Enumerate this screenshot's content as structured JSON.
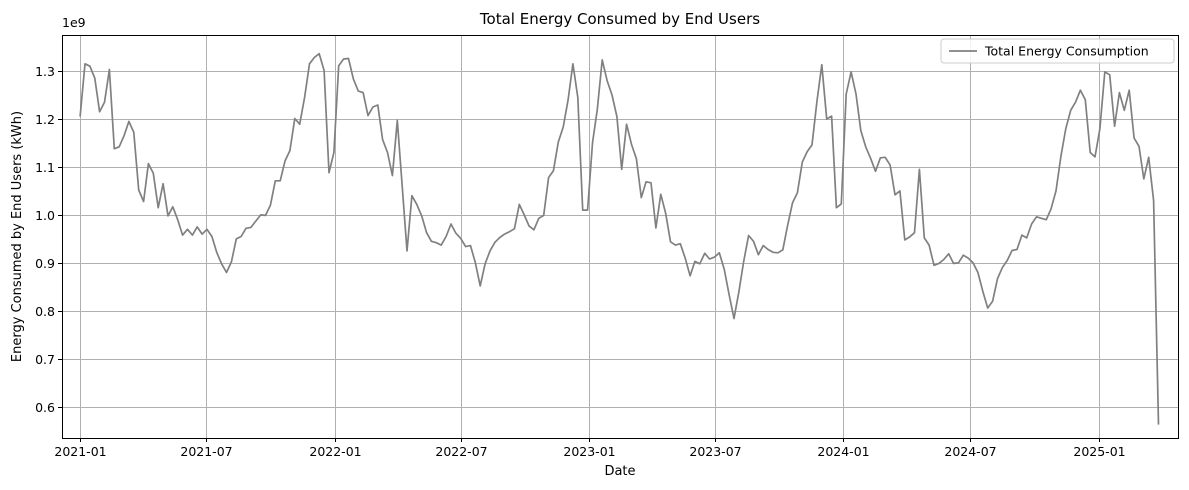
{
  "chart_data": {
    "type": "line",
    "title": "Total Energy Consumed by End Users",
    "xlabel": "Date",
    "ylabel": "Energy Consumed by End Users (kWh)",
    "y_multiplier_label": "1e9",
    "x_ticks": [
      "2021-01",
      "2021-07",
      "2022-01",
      "2022-07",
      "2023-01",
      "2023-07",
      "2024-01",
      "2024-07",
      "2025-01"
    ],
    "y_ticks": [
      "0.6",
      "0.7",
      "0.8",
      "0.9",
      "1.0",
      "1.1",
      "1.2",
      "1.3"
    ],
    "ylim": [
      0.535,
      1.375
    ],
    "xlim": [
      "2020-12-06",
      "2025-04-25"
    ],
    "grid": true,
    "legend_position": "top-right",
    "line_color": "#808080",
    "series": [
      {
        "name": "Total Energy Consumption",
        "x": [
          "2021-01-01",
          "2021-01-08",
          "2021-01-15",
          "2021-01-22",
          "2021-01-29",
          "2021-02-05",
          "2021-02-12",
          "2021-02-19",
          "2021-02-26",
          "2021-03-05",
          "2021-03-12",
          "2021-03-19",
          "2021-03-26",
          "2021-04-02",
          "2021-04-09",
          "2021-04-16",
          "2021-04-23",
          "2021-04-30",
          "2021-05-07",
          "2021-05-14",
          "2021-05-21",
          "2021-05-28",
          "2021-06-04",
          "2021-06-11",
          "2021-06-18",
          "2021-06-25",
          "2021-07-02",
          "2021-07-09",
          "2021-07-16",
          "2021-07-23",
          "2021-07-30",
          "2021-08-06",
          "2021-08-13",
          "2021-08-20",
          "2021-08-27",
          "2021-09-03",
          "2021-09-10",
          "2021-09-17",
          "2021-09-24",
          "2021-10-01",
          "2021-10-08",
          "2021-10-15",
          "2021-10-22",
          "2021-10-29",
          "2021-11-05",
          "2021-11-12",
          "2021-11-19",
          "2021-11-26",
          "2021-12-03",
          "2021-12-10",
          "2021-12-17",
          "2021-12-24",
          "2021-12-31",
          "2022-01-07",
          "2022-01-14",
          "2022-01-21",
          "2022-01-28",
          "2022-02-04",
          "2022-02-11",
          "2022-02-18",
          "2022-02-25",
          "2022-03-04",
          "2022-03-11",
          "2022-03-18",
          "2022-03-25",
          "2022-04-01",
          "2022-04-08",
          "2022-04-15",
          "2022-04-22",
          "2022-04-29",
          "2022-05-06",
          "2022-05-13",
          "2022-05-20",
          "2022-05-27",
          "2022-06-03",
          "2022-06-10",
          "2022-06-17",
          "2022-06-24",
          "2022-07-01",
          "2022-07-08",
          "2022-07-15",
          "2022-07-22",
          "2022-07-29",
          "2022-08-05",
          "2022-08-12",
          "2022-08-19",
          "2022-08-26",
          "2022-09-02",
          "2022-09-09",
          "2022-09-16",
          "2022-09-23",
          "2022-09-30",
          "2022-10-07",
          "2022-10-14",
          "2022-10-21",
          "2022-10-28",
          "2022-11-04",
          "2022-11-11",
          "2022-11-18",
          "2022-11-25",
          "2022-12-02",
          "2022-12-09",
          "2022-12-16",
          "2022-12-23",
          "2022-12-30",
          "2023-01-06",
          "2023-01-13",
          "2023-01-20",
          "2023-01-27",
          "2023-02-03",
          "2023-02-10",
          "2023-02-17",
          "2023-02-24",
          "2023-03-03",
          "2023-03-10",
          "2023-03-17",
          "2023-03-24",
          "2023-03-31",
          "2023-04-07",
          "2023-04-14",
          "2023-04-21",
          "2023-04-28",
          "2023-05-05",
          "2023-05-12",
          "2023-05-19",
          "2023-05-26",
          "2023-06-02",
          "2023-06-09",
          "2023-06-16",
          "2023-06-23",
          "2023-06-30",
          "2023-07-07",
          "2023-07-14",
          "2023-07-21",
          "2023-07-28",
          "2023-08-04",
          "2023-08-11",
          "2023-08-18",
          "2023-08-25",
          "2023-09-01",
          "2023-09-08",
          "2023-09-15",
          "2023-09-22",
          "2023-09-29",
          "2023-10-06",
          "2023-10-13",
          "2023-10-20",
          "2023-10-27",
          "2023-11-03",
          "2023-11-10",
          "2023-11-17",
          "2023-11-24",
          "2023-12-01",
          "2023-12-08",
          "2023-12-15",
          "2023-12-22",
          "2023-12-29",
          "2024-01-05",
          "2024-01-12",
          "2024-01-19",
          "2024-01-26",
          "2024-02-02",
          "2024-02-09",
          "2024-02-16",
          "2024-02-23",
          "2024-03-01",
          "2024-03-08",
          "2024-03-15",
          "2024-03-22",
          "2024-03-29",
          "2024-04-05",
          "2024-04-12",
          "2024-04-19",
          "2024-04-26",
          "2024-05-03",
          "2024-05-10",
          "2024-05-17",
          "2024-05-24",
          "2024-05-31",
          "2024-06-07",
          "2024-06-14",
          "2024-06-21",
          "2024-06-28",
          "2024-07-05",
          "2024-07-12",
          "2024-07-19",
          "2024-07-26",
          "2024-08-02",
          "2024-08-09",
          "2024-08-16",
          "2024-08-23",
          "2024-08-30",
          "2024-09-06",
          "2024-09-13",
          "2024-09-20",
          "2024-09-27",
          "2024-10-04",
          "2024-10-11",
          "2024-10-18",
          "2024-10-25",
          "2024-11-01",
          "2024-11-08",
          "2024-11-15",
          "2024-11-22",
          "2024-11-29",
          "2024-12-06",
          "2024-12-13",
          "2024-12-20",
          "2024-12-27",
          "2025-01-03",
          "2025-01-10",
          "2025-01-17",
          "2025-01-24",
          "2025-01-31",
          "2025-02-07",
          "2025-02-14",
          "2025-02-21",
          "2025-02-28",
          "2025-03-07",
          "2025-03-14",
          "2025-03-21",
          "2025-03-28"
        ],
        "values": [
          1.205,
          1.315,
          1.31,
          1.285,
          1.215,
          1.235,
          1.303,
          1.138,
          1.142,
          1.165,
          1.195,
          1.172,
          1.052,
          1.028,
          1.107,
          1.087,
          1.015,
          1.065,
          0.998,
          1.017,
          0.99,
          0.958,
          0.97,
          0.958,
          0.975,
          0.96,
          0.97,
          0.955,
          0.922,
          0.898,
          0.88,
          0.902,
          0.95,
          0.955,
          0.972,
          0.974,
          0.987,
          1.0,
          0.999,
          1.02,
          1.071,
          1.071,
          1.113,
          1.134,
          1.201,
          1.189,
          1.245,
          1.315,
          1.328,
          1.336,
          1.301,
          1.088,
          1.13,
          1.311,
          1.325,
          1.326,
          1.283,
          1.258,
          1.255,
          1.207,
          1.225,
          1.229,
          1.157,
          1.13,
          1.082,
          1.197,
          1.06,
          0.925,
          1.04,
          1.022,
          0.998,
          0.963,
          0.945,
          0.942,
          0.937,
          0.955,
          0.981,
          0.962,
          0.951,
          0.934,
          0.936,
          0.9,
          0.852,
          0.898,
          0.925,
          0.943,
          0.953,
          0.96,
          0.965,
          0.971,
          1.022,
          1.0,
          0.977,
          0.969,
          0.993,
          0.999,
          1.078,
          1.092,
          1.152,
          1.183,
          1.24,
          1.315,
          1.245,
          1.01,
          1.01,
          1.15,
          1.22,
          1.323,
          1.28,
          1.25,
          1.205,
          1.095,
          1.189,
          1.147,
          1.117,
          1.036,
          1.069,
          1.067,
          0.973,
          1.043,
          1.003,
          0.944,
          0.937,
          0.94,
          0.91,
          0.873,
          0.903,
          0.898,
          0.92,
          0.908,
          0.912,
          0.921,
          0.887,
          0.834,
          0.784,
          0.839,
          0.903,
          0.957,
          0.945,
          0.917,
          0.936,
          0.928,
          0.922,
          0.921,
          0.927,
          0.978,
          1.025,
          1.046,
          1.11,
          1.132,
          1.146,
          1.236,
          1.313,
          1.2,
          1.206,
          1.015,
          1.023,
          1.252,
          1.298,
          1.252,
          1.176,
          1.142,
          1.118,
          1.091,
          1.119,
          1.12,
          1.104,
          1.042,
          1.05,
          0.948,
          0.954,
          0.963,
          1.095,
          0.952,
          0.937,
          0.895,
          0.899,
          0.907,
          0.919,
          0.899,
          0.9,
          0.916,
          0.91,
          0.9,
          0.88,
          0.841,
          0.806,
          0.82,
          0.867,
          0.89,
          0.905,
          0.926,
          0.928,
          0.958,
          0.952,
          0.981,
          0.996,
          0.993,
          0.99,
          1.013,
          1.05,
          1.122,
          1.18,
          1.218,
          1.235,
          1.26,
          1.24,
          1.13,
          1.121,
          1.18,
          1.298,
          1.292,
          1.185,
          1.255,
          1.218,
          1.26,
          1.16,
          1.143,
          1.075,
          1.12,
          1.03,
          0.563
        ]
      }
    ]
  }
}
